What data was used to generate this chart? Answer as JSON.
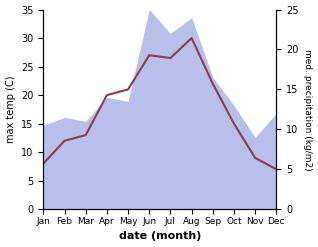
{
  "months": [
    "Jan",
    "Feb",
    "Mar",
    "Apr",
    "May",
    "Jun",
    "Jul",
    "Aug",
    "Sep",
    "Oct",
    "Nov",
    "Dec"
  ],
  "max_temp": [
    8,
    12,
    13,
    20,
    21,
    27,
    26.5,
    30,
    22,
    15,
    9,
    7
  ],
  "precipitation": [
    10.5,
    11.5,
    11,
    14,
    13.5,
    25,
    22,
    24,
    16.5,
    13,
    9,
    12
  ],
  "temp_color": "#8B3A52",
  "precip_fill_color": "#b8bfe8",
  "ylabel_left": "max temp (C)",
  "ylabel_right": "med. precipitation (kg/m2)",
  "xlabel": "date (month)",
  "ylim_left": [
    0,
    35
  ],
  "ylim_right": [
    0,
    25
  ],
  "yticks_left": [
    0,
    5,
    10,
    15,
    20,
    25,
    30,
    35
  ],
  "yticks_right": [
    0,
    5,
    10,
    15,
    20,
    25
  ],
  "background_color": "#ffffff"
}
